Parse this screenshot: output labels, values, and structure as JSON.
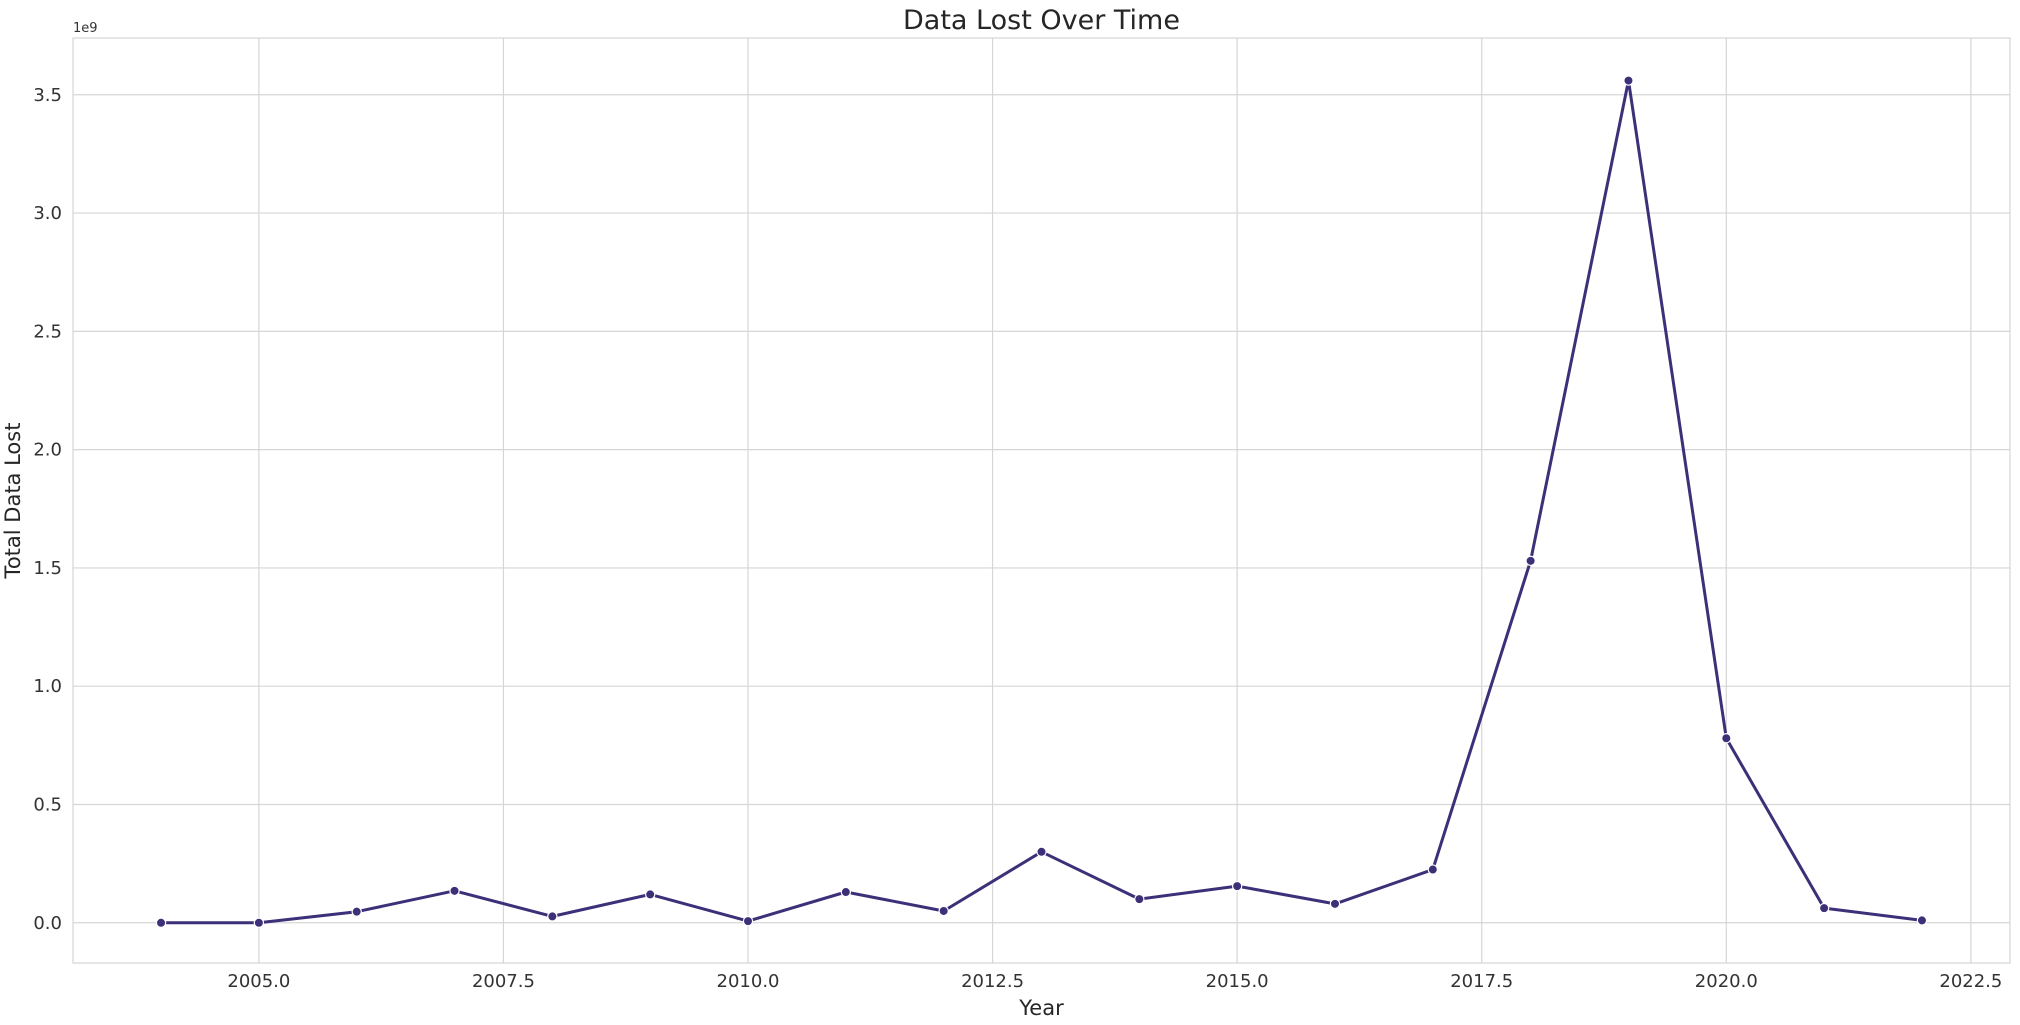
{
  "chart_data": {
    "type": "line",
    "title": "Data Lost Over Time",
    "xlabel": "Year",
    "ylabel": "Total Data Lost",
    "y_offset_label": "1e9",
    "y_scale_multiplier": 1000000000,
    "xlim": [
      2003.1,
      2022.9
    ],
    "ylim": [
      -170000000,
      3740000000
    ],
    "x_ticks": [
      2005.0,
      2007.5,
      2010.0,
      2012.5,
      2015.0,
      2017.5,
      2020.0,
      2022.5
    ],
    "x_tick_labels": [
      "2005.0",
      "2007.5",
      "2010.0",
      "2012.5",
      "2015.0",
      "2017.5",
      "2020.0",
      "2022.5"
    ],
    "y_ticks": [
      0,
      500000000,
      1000000000,
      1500000000,
      2000000000,
      2500000000,
      3000000000,
      3500000000
    ],
    "y_tick_labels": [
      "0.0",
      "0.5",
      "1.0",
      "1.5",
      "2.0",
      "2.5",
      "3.0",
      "3.5"
    ],
    "grid": true,
    "line_color": "#3d2f78",
    "grid_color": "#d6d6d6",
    "series": [
      {
        "x": [
          2004,
          2005,
          2006,
          2007,
          2008,
          2009,
          2010,
          2011,
          2012,
          2013,
          2014,
          2015,
          2016,
          2017,
          2018,
          2019,
          2020,
          2021,
          2022
        ],
        "values": [
          0,
          0,
          47000000,
          135000000,
          27000000,
          120000000,
          7000000,
          130000000,
          50000000,
          300000000,
          100000000,
          155000000,
          80000000,
          225000000,
          1530000000,
          3560000000,
          780000000,
          62000000,
          10000000
        ]
      }
    ]
  }
}
